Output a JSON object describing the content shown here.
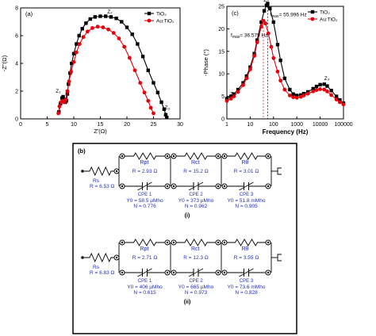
{
  "chart_data": [
    {
      "type": "scatter",
      "panel": "(a)",
      "xlabel": "Z'(Ω)",
      "ylabel": "-Z''(Ω)",
      "xlim": [
        0,
        30
      ],
      "ylim": [
        0,
        8
      ],
      "xticks": [
        "0",
        "5",
        "10",
        "15",
        "20",
        "25",
        "30"
      ],
      "yticks": [
        "0",
        "2",
        "4",
        "6",
        "8"
      ],
      "legend": [
        "TiO₂",
        "Au:TiO₂"
      ],
      "annotations": [
        "Z₁",
        "Z₂",
        "Z₃"
      ],
      "series": [
        {
          "name": "TiO₂",
          "color": "#000000",
          "marker": "square",
          "x": [
            7.2,
            7.5,
            7.8,
            8.0,
            8.2,
            8.4,
            8.6,
            8.8,
            9.0,
            9.3,
            9.6,
            10.0,
            10.5,
            11.0,
            11.6,
            12.3,
            13.1,
            14.0,
            15.0,
            16.0,
            17.0,
            18.0,
            19.0,
            20.0,
            21.0,
            22.0,
            23.0,
            24.0,
            25.0,
            25.8,
            26.5,
            27.0,
            27.3,
            27.5
          ],
          "y": [
            0.5,
            1.1,
            1.5,
            1.6,
            1.4,
            1.2,
            1.3,
            1.8,
            2.5,
            3.3,
            4.0,
            4.7,
            5.4,
            6.0,
            6.5,
            6.9,
            7.2,
            7.35,
            7.4,
            7.4,
            7.35,
            7.25,
            7.0,
            6.6,
            6.1,
            5.4,
            4.5,
            3.5,
            2.6,
            1.9,
            1.2,
            0.7,
            0.3,
            0.1
          ]
        },
        {
          "name": "Au:TiO₂",
          "color": "#e8000b",
          "marker": "circle",
          "x": [
            7.1,
            7.3,
            7.6,
            7.9,
            8.2,
            8.5,
            8.8,
            9.1,
            9.5,
            10.0,
            10.5,
            11.1,
            11.8,
            12.6,
            13.5,
            14.5,
            15.5,
            16.5,
            17.5,
            18.5,
            19.5,
            20.5,
            21.5,
            22.5,
            23.3,
            24.0,
            24.5,
            25.0
          ],
          "y": [
            0.4,
            0.9,
            1.2,
            1.3,
            1.2,
            1.4,
            2.0,
            2.7,
            3.4,
            4.1,
            4.8,
            5.4,
            5.9,
            6.3,
            6.55,
            6.65,
            6.6,
            6.45,
            6.2,
            5.8,
            5.2,
            4.4,
            3.5,
            2.6,
            1.9,
            1.3,
            0.8,
            0.4
          ]
        }
      ]
    },
    {
      "type": "line",
      "panel": "(c)",
      "xlabel": "Frequency (Hz)",
      "ylabel": "-Phase (°)",
      "xscale": "log",
      "xlim": [
        1,
        100000
      ],
      "ylim": [
        0,
        25
      ],
      "xticks": [
        "1",
        "10",
        "100",
        "1000",
        "10000",
        "100000"
      ],
      "yticks": [
        "0",
        "5",
        "10",
        "15",
        "20",
        "25"
      ],
      "legend": [
        "TiO₂",
        "Au:TiO₂"
      ],
      "annotations": [
        "Z₁",
        "Z₂",
        "Z₃",
        "f",
        "max",
        "= 55.996 Hz",
        "f",
        "max",
        "= 36.579 Hz"
      ],
      "series": [
        {
          "name": "TiO₂",
          "color": "#000000",
          "marker": "square",
          "x": [
            1,
            1.5,
            2,
            3,
            5,
            7,
            10,
            15,
            20,
            30,
            40,
            50,
            56,
            70,
            100,
            150,
            200,
            300,
            500,
            700,
            1000,
            1500,
            2000,
            3000,
            5000,
            7000,
            10000,
            15000,
            20000,
            30000,
            50000,
            70000,
            100000
          ],
          "y": [
            4.5,
            5.0,
            5.5,
            6.5,
            8.0,
            9.5,
            11.5,
            14.5,
            17.5,
            21.5,
            24.0,
            25.2,
            25.6,
            24.5,
            21.5,
            16.5,
            13.0,
            9.0,
            6.5,
            5.5,
            5.2,
            5.3,
            5.6,
            6.0,
            6.7,
            7.2,
            7.6,
            7.7,
            7.3,
            6.3,
            5.0,
            4.2,
            3.5
          ]
        },
        {
          "name": "Au:TiO₂",
          "color": "#e8000b",
          "marker": "circle",
          "x": [
            1,
            1.5,
            2,
            3,
            5,
            7,
            10,
            15,
            20,
            30,
            37,
            45,
            60,
            80,
            100,
            150,
            200,
            300,
            500,
            700,
            1000,
            1500,
            2000,
            3000,
            5000,
            7000,
            10000,
            15000,
            20000,
            30000,
            50000,
            70000,
            100000
          ],
          "y": [
            4.0,
            4.5,
            5.0,
            6.0,
            7.5,
            9.0,
            11.0,
            14.0,
            17.0,
            20.5,
            21.8,
            21.2,
            19.0,
            16.0,
            13.5,
            10.5,
            8.5,
            6.5,
            5.2,
            4.8,
            4.7,
            4.9,
            5.2,
            5.6,
            6.1,
            6.4,
            6.6,
            6.5,
            6.1,
            5.3,
            4.3,
            3.7,
            3.2
          ]
        }
      ]
    },
    {
      "type": "diagram",
      "panel": "(b)",
      "circuits": [
        {
          "label": "(i)",
          "rs": "R = 6.53 Ω",
          "stages": [
            {
              "name": "Rpt",
              "r": "R = 2.93 Ω",
              "cpe": "CPE 1",
              "y0": "Y0 = 58.5 µMho",
              "n": "N = 0.776"
            },
            {
              "name": "Rct",
              "r": "R = 15.2 Ω",
              "cpe": "CPE 2",
              "y0": "Y0 = 373 µMho",
              "n": "N = 0.962"
            },
            {
              "name": "Rθ",
              "r": "R = 3.01 Ω",
              "cpe": "CPE 3",
              "y0": "Y0 = 51.8 mMho",
              "n": "N = 0.905"
            }
          ]
        },
        {
          "label": "(ii)",
          "rs": "R = 6.83 Ω",
          "stages": [
            {
              "name": "Rpt",
              "r": "R = 2.71 Ω",
              "cpe": "CPE 1",
              "y0": "Y0 = 406 µMho",
              "n": "N = 0.615"
            },
            {
              "name": "Rct",
              "r": "R = 12.3 Ω",
              "cpe": "CPE 2",
              "y0": "Y0 = 665 µMho",
              "n": "N = 0.973"
            },
            {
              "name": "Rθ",
              "r": "R = 3.55 Ω",
              "cpe": "CPE 3",
              "y0": "Y0 = 73.6 mMho",
              "n": "N = 0.828"
            }
          ]
        }
      ]
    }
  ],
  "panel_b_label": "(b)",
  "rs_name": "Rs"
}
